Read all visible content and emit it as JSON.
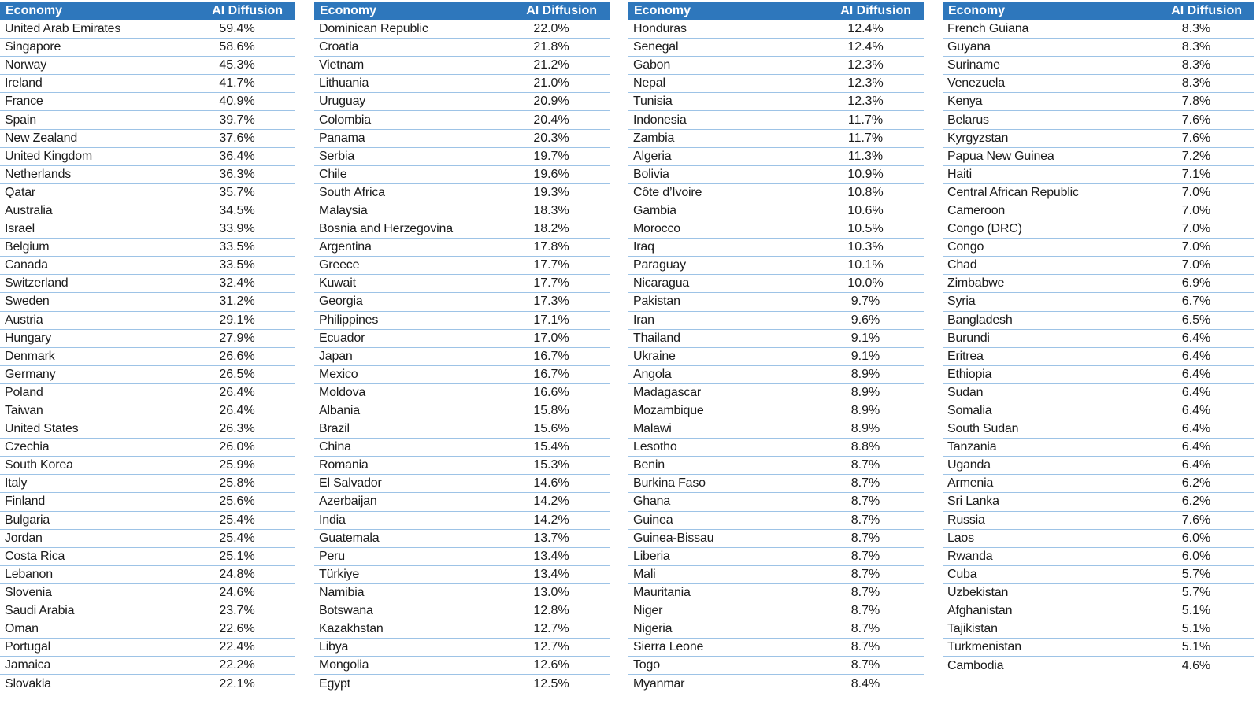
{
  "colors": {
    "header_bg": "#2E77BC",
    "header_text": "#FFFFFF",
    "row_divider": "#9DC3E6",
    "body_text": "#1B1B1B"
  },
  "chart_data": {
    "type": "table",
    "columns": [
      "Economy",
      "AI Diffusion"
    ],
    "tables": [
      {
        "rows": [
          [
            "United Arab Emirates",
            "59.4%"
          ],
          [
            "Singapore",
            "58.6%"
          ],
          [
            "Norway",
            "45.3%"
          ],
          [
            "Ireland",
            "41.7%"
          ],
          [
            "France",
            "40.9%"
          ],
          [
            "Spain",
            "39.7%"
          ],
          [
            "New Zealand",
            "37.6%"
          ],
          [
            "United Kingdom",
            "36.4%"
          ],
          [
            "Netherlands",
            "36.3%"
          ],
          [
            "Qatar",
            "35.7%"
          ],
          [
            "Australia",
            "34.5%"
          ],
          [
            "Israel",
            "33.9%"
          ],
          [
            "Belgium",
            "33.5%"
          ],
          [
            "Canada",
            "33.5%"
          ],
          [
            "Switzerland",
            "32.4%"
          ],
          [
            "Sweden",
            "31.2%"
          ],
          [
            "Austria",
            "29.1%"
          ],
          [
            "Hungary",
            "27.9%"
          ],
          [
            "Denmark",
            "26.6%"
          ],
          [
            "Germany",
            "26.5%"
          ],
          [
            "Poland",
            "26.4%"
          ],
          [
            "Taiwan",
            "26.4%"
          ],
          [
            "United States",
            "26.3%"
          ],
          [
            "Czechia",
            "26.0%"
          ],
          [
            "South Korea",
            "25.9%"
          ],
          [
            "Italy",
            "25.8%"
          ],
          [
            "Finland",
            "25.6%"
          ],
          [
            "Bulgaria",
            "25.4%"
          ],
          [
            "Jordan",
            "25.4%"
          ],
          [
            "Costa Rica",
            "25.1%"
          ],
          [
            "Lebanon",
            "24.8%"
          ],
          [
            "Slovenia",
            "24.6%"
          ],
          [
            "Saudi Arabia",
            "23.7%"
          ],
          [
            "Oman",
            "22.6%"
          ],
          [
            "Portugal",
            "22.4%"
          ],
          [
            "Jamaica",
            "22.2%"
          ],
          [
            "Slovakia",
            "22.1%"
          ]
        ]
      },
      {
        "rows": [
          [
            "Dominican Republic",
            "22.0%"
          ],
          [
            "Croatia",
            "21.8%"
          ],
          [
            "Vietnam",
            "21.2%"
          ],
          [
            "Lithuania",
            "21.0%"
          ],
          [
            "Uruguay",
            "20.9%"
          ],
          [
            "Colombia",
            "20.4%"
          ],
          [
            "Panama",
            "20.3%"
          ],
          [
            "Serbia",
            "19.7%"
          ],
          [
            "Chile",
            "19.6%"
          ],
          [
            "South Africa",
            "19.3%"
          ],
          [
            "Malaysia",
            "18.3%"
          ],
          [
            "Bosnia and Herzegovina",
            "18.2%"
          ],
          [
            "Argentina",
            "17.8%"
          ],
          [
            "Greece",
            "17.7%"
          ],
          [
            "Kuwait",
            "17.7%"
          ],
          [
            "Georgia",
            "17.3%"
          ],
          [
            "Philippines",
            "17.1%"
          ],
          [
            "Ecuador",
            "17.0%"
          ],
          [
            "Japan",
            "16.7%"
          ],
          [
            "Mexico",
            "16.7%"
          ],
          [
            "Moldova",
            "16.6%"
          ],
          [
            "Albania",
            "15.8%"
          ],
          [
            "Brazil",
            "15.6%"
          ],
          [
            "China",
            "15.4%"
          ],
          [
            "Romania",
            "15.3%"
          ],
          [
            "El Salvador",
            "14.6%"
          ],
          [
            "Azerbaijan",
            "14.2%"
          ],
          [
            "India",
            "14.2%"
          ],
          [
            "Guatemala",
            "13.7%"
          ],
          [
            "Peru",
            "13.4%"
          ],
          [
            "Türkiye",
            "13.4%"
          ],
          [
            "Namibia",
            "13.0%"
          ],
          [
            "Botswana",
            "12.8%"
          ],
          [
            "Kazakhstan",
            "12.7%"
          ],
          [
            "Libya",
            "12.7%"
          ],
          [
            "Mongolia",
            "12.6%"
          ],
          [
            "Egypt",
            "12.5%"
          ]
        ]
      },
      {
        "rows": [
          [
            "Honduras",
            "12.4%"
          ],
          [
            "Senegal",
            "12.4%"
          ],
          [
            "Gabon",
            "12.3%"
          ],
          [
            "Nepal",
            "12.3%"
          ],
          [
            "Tunisia",
            "12.3%"
          ],
          [
            "Indonesia",
            "11.7%"
          ],
          [
            "Zambia",
            "11.7%"
          ],
          [
            "Algeria",
            "11.3%"
          ],
          [
            "Bolivia",
            "10.9%"
          ],
          [
            "Côte d’Ivoire",
            "10.8%"
          ],
          [
            "Gambia",
            "10.6%"
          ],
          [
            "Morocco",
            "10.5%"
          ],
          [
            "Iraq",
            "10.3%"
          ],
          [
            "Paraguay",
            "10.1%"
          ],
          [
            "Nicaragua",
            "10.0%"
          ],
          [
            "Pakistan",
            "9.7%"
          ],
          [
            "Iran",
            "9.6%"
          ],
          [
            "Thailand",
            "9.1%"
          ],
          [
            "Ukraine",
            "9.1%"
          ],
          [
            "Angola",
            "8.9%"
          ],
          [
            "Madagascar",
            "8.9%"
          ],
          [
            "Mozambique",
            "8.9%"
          ],
          [
            "Malawi",
            "8.9%"
          ],
          [
            "Lesotho",
            "8.8%"
          ],
          [
            "Benin",
            "8.7%"
          ],
          [
            "Burkina Faso",
            "8.7%"
          ],
          [
            "Ghana",
            "8.7%"
          ],
          [
            "Guinea",
            "8.7%"
          ],
          [
            "Guinea-Bissau",
            "8.7%"
          ],
          [
            "Liberia",
            "8.7%"
          ],
          [
            "Mali",
            "8.7%"
          ],
          [
            "Mauritania",
            "8.7%"
          ],
          [
            "Niger",
            "8.7%"
          ],
          [
            "Nigeria",
            "8.7%"
          ],
          [
            "Sierra Leone",
            "8.7%"
          ],
          [
            "Togo",
            "8.7%"
          ],
          [
            "Myanmar",
            "8.4%"
          ]
        ]
      },
      {
        "rows": [
          [
            "French Guiana",
            "8.3%"
          ],
          [
            "Guyana",
            "8.3%"
          ],
          [
            "Suriname",
            "8.3%"
          ],
          [
            "Venezuela",
            "8.3%"
          ],
          [
            "Kenya",
            "7.8%"
          ],
          [
            "Belarus",
            "7.6%"
          ],
          [
            "Kyrgyzstan",
            "7.6%"
          ],
          [
            "Papua New Guinea",
            "7.2%"
          ],
          [
            "Haiti",
            "7.1%"
          ],
          [
            "Central African Republic",
            "7.0%"
          ],
          [
            "Cameroon",
            "7.0%"
          ],
          [
            "Congo (DRC)",
            "7.0%"
          ],
          [
            "Congo",
            "7.0%"
          ],
          [
            "Chad",
            "7.0%"
          ],
          [
            "Zimbabwe",
            "6.9%"
          ],
          [
            "Syria",
            "6.7%"
          ],
          [
            "Bangladesh",
            "6.5%"
          ],
          [
            "Burundi",
            "6.4%"
          ],
          [
            "Eritrea",
            "6.4%"
          ],
          [
            "Ethiopia",
            "6.4%"
          ],
          [
            "Sudan",
            "6.4%"
          ],
          [
            "Somalia",
            "6.4%"
          ],
          [
            "South Sudan",
            "6.4%"
          ],
          [
            "Tanzania",
            "6.4%"
          ],
          [
            "Uganda",
            "6.4%"
          ],
          [
            "Armenia",
            "6.2%"
          ],
          [
            "Sri Lanka",
            "6.2%"
          ],
          [
            "Russia",
            "7.6%"
          ],
          [
            "Laos",
            "6.0%"
          ],
          [
            "Rwanda",
            "6.0%"
          ],
          [
            "Cuba",
            "5.7%"
          ],
          [
            "Uzbekistan",
            "5.7%"
          ],
          [
            "Afghanistan",
            "5.1%"
          ],
          [
            "Tajikistan",
            "5.1%"
          ],
          [
            "Turkmenistan",
            "5.1%"
          ],
          [
            "Cambodia",
            "4.6%"
          ]
        ]
      }
    ]
  }
}
